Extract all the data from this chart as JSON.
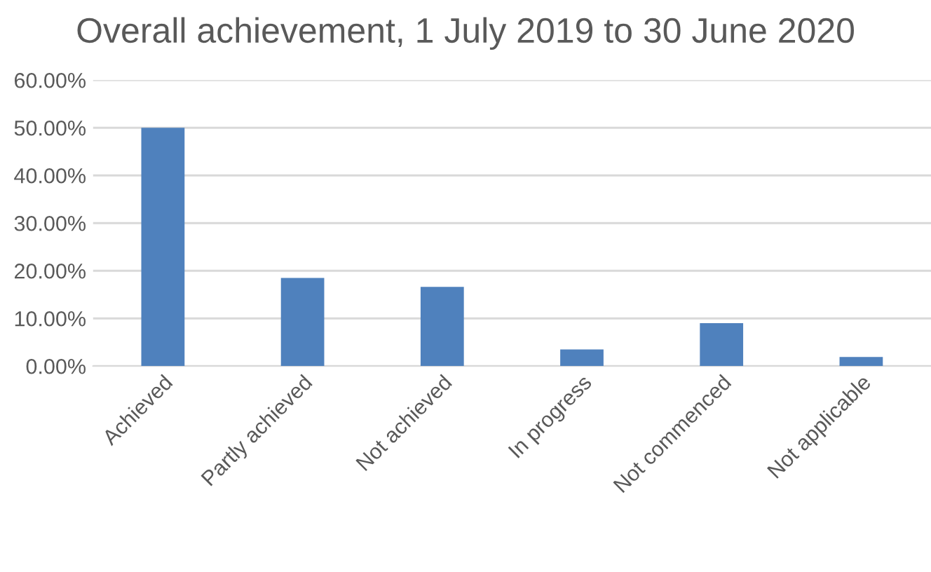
{
  "chart_data": {
    "type": "bar",
    "title": "Overall achievement, 1 July 2019 to 30 June 2020",
    "categories": [
      "Achieved",
      "Partly achieved",
      "Not achieved",
      "In progress",
      "Not commenced",
      "Not applicable"
    ],
    "values": [
      50.0,
      18.5,
      16.6,
      3.5,
      9.0,
      1.9
    ],
    "color": "#4f81bd",
    "ylim": [
      0,
      60
    ],
    "yticks": [
      {
        "value": 0,
        "label": "0.00%"
      },
      {
        "value": 10,
        "label": "10.00%"
      },
      {
        "value": 20,
        "label": "20.00%"
      },
      {
        "value": 30,
        "label": "30.00%"
      },
      {
        "value": 40,
        "label": "40.00%"
      },
      {
        "value": 50,
        "label": "50.00%"
      },
      {
        "value": 60,
        "label": "60.00%"
      }
    ],
    "grid": "y"
  }
}
